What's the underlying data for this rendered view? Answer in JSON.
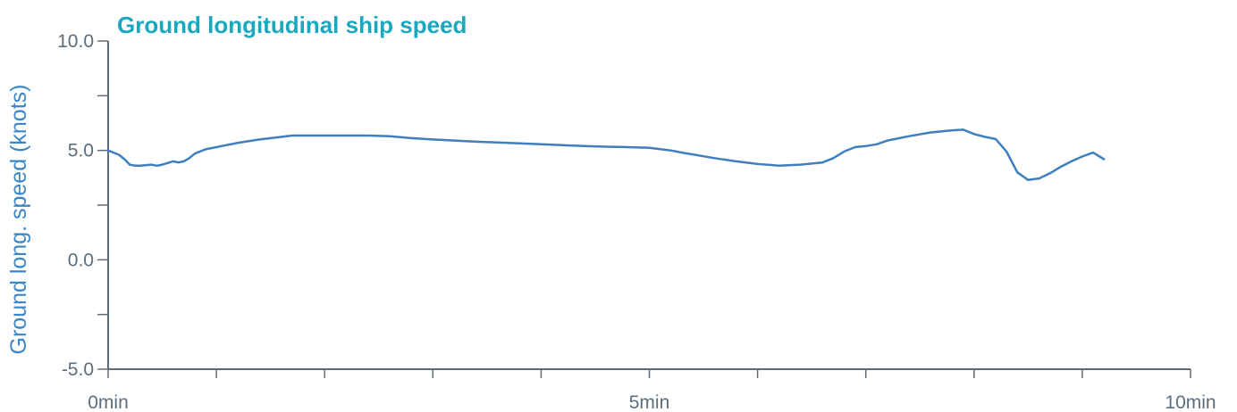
{
  "chart_data": {
    "type": "line",
    "title": "Ground longitudinal ship speed",
    "ylabel": "Ground long. speed (knots)",
    "xlabel": "",
    "xlim": [
      0,
      10
    ],
    "ylim": [
      -5,
      10
    ],
    "x_unit": "min",
    "xticks": [
      0,
      1,
      2,
      3,
      4,
      5,
      6,
      7,
      8,
      9,
      10
    ],
    "x_tick_labels": [
      "0min",
      "",
      "",
      "",
      "",
      "5min",
      "",
      "",
      "",
      "",
      "10min"
    ],
    "yticks": [
      -5,
      -2.5,
      0,
      2.5,
      5,
      7.5,
      10
    ],
    "y_tick_labels": [
      "-5.0",
      "",
      "0.0",
      "",
      "5.0",
      "",
      "10.0"
    ],
    "grid": false,
    "colors": {
      "title": "#1aa8bf",
      "ylabel": "#3a86c8",
      "series": "#3f7fc0",
      "axis": "#5f6b74",
      "tick_label": "#5a6e80"
    },
    "series": [
      {
        "x": [
          0,
          0.1,
          0.15,
          0.2,
          0.25,
          0.3,
          0.4,
          0.45,
          0.5,
          0.6,
          0.65,
          0.7,
          0.75,
          0.8,
          0.9,
          1.0,
          1.2,
          1.4,
          1.6,
          1.7,
          1.8,
          2.0,
          2.2,
          2.4,
          2.6,
          2.8,
          3.0,
          3.2,
          3.4,
          3.6,
          3.8,
          4.0,
          4.2,
          4.4,
          4.6,
          4.8,
          5.0,
          5.1,
          5.2,
          5.3,
          5.4,
          5.6,
          5.8,
          6.0,
          6.2,
          6.4,
          6.5,
          6.6,
          6.7,
          6.8,
          6.9,
          7.0,
          7.1,
          7.2,
          7.4,
          7.6,
          7.8,
          7.9,
          8.0,
          8.1,
          8.2,
          8.3,
          8.4,
          8.5,
          8.6,
          8.7,
          8.8,
          8.9,
          9.0,
          9.1,
          9.2
        ],
        "y": [
          5.0,
          4.8,
          4.6,
          4.35,
          4.3,
          4.3,
          4.35,
          4.3,
          4.35,
          4.5,
          4.45,
          4.5,
          4.65,
          4.85,
          5.05,
          5.15,
          5.35,
          5.5,
          5.62,
          5.68,
          5.68,
          5.68,
          5.68,
          5.68,
          5.65,
          5.56,
          5.5,
          5.45,
          5.4,
          5.36,
          5.32,
          5.28,
          5.24,
          5.2,
          5.17,
          5.15,
          5.12,
          5.06,
          5.0,
          4.9,
          4.82,
          4.65,
          4.5,
          4.38,
          4.3,
          4.35,
          4.4,
          4.45,
          4.65,
          4.95,
          5.15,
          5.2,
          5.28,
          5.45,
          5.65,
          5.82,
          5.92,
          5.95,
          5.75,
          5.62,
          5.52,
          4.95,
          4.0,
          3.65,
          3.72,
          3.95,
          4.25,
          4.5,
          4.72,
          4.9,
          4.6
        ]
      }
    ]
  }
}
